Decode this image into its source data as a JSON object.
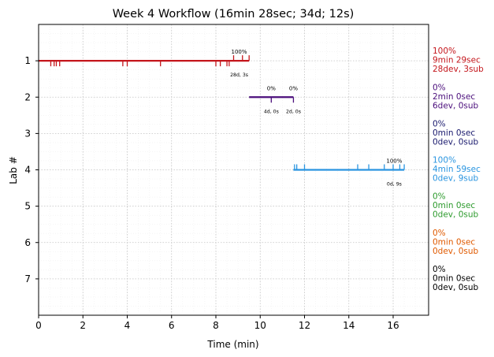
{
  "chart_data": {
    "type": "timeline",
    "title": "Week 4 Workflow (16min 28sec; 34d; 12s)",
    "xlabel": "Time (min)",
    "ylabel": "Lab #",
    "xlim": [
      0,
      17.6
    ],
    "ylim": [
      8,
      0
    ],
    "x_ticks": [
      0,
      2,
      4,
      6,
      8,
      10,
      12,
      14,
      16
    ],
    "y_ticks": [
      1,
      2,
      3,
      4,
      5,
      6,
      7
    ],
    "grid": true,
    "series": [
      {
        "lab": 1,
        "color": "#c4161c",
        "segments": [
          {
            "start": 0.0,
            "end": 9.5
          }
        ],
        "dev_ticks": [
          0.55,
          0.7,
          0.8,
          0.95,
          3.8,
          4.0,
          5.5,
          8.0,
          8.2,
          8.5,
          8.6
        ],
        "sub_ticks": [
          8.8,
          9.2,
          9.5
        ],
        "marks": [
          {
            "x": 9.05,
            "top": "100%",
            "bottom": "28d, 3s"
          }
        ],
        "summary": [
          "100%",
          "9min 29sec",
          "28dev, 3sub"
        ]
      },
      {
        "lab": 2,
        "color": "#4b0f7c",
        "segments": [
          {
            "start": 9.5,
            "end": 11.5
          }
        ],
        "dev_ticks": [
          10.5,
          11.5
        ],
        "sub_ticks": [],
        "marks": [
          {
            "x": 10.5,
            "top": "0%",
            "bottom": "4d, 0s"
          },
          {
            "x": 11.5,
            "top": "0%",
            "bottom": "2d, 0s"
          }
        ],
        "summary": [
          "0%",
          "2min 0sec",
          "6dev, 0sub"
        ]
      },
      {
        "lab": 3,
        "color": "#1a1a6e",
        "segments": [],
        "dev_ticks": [],
        "sub_ticks": [],
        "marks": [],
        "summary": [
          "0%",
          "0min 0sec",
          "0dev, 0sub"
        ]
      },
      {
        "lab": 4,
        "color": "#2a95e0",
        "segments": [
          {
            "start": 11.5,
            "end": 16.5
          }
        ],
        "dev_ticks": [],
        "sub_ticks": [
          11.55,
          11.65,
          12.0,
          14.4,
          14.9,
          15.6,
          16.0,
          16.3,
          16.5
        ],
        "marks": [
          {
            "x": 16.05,
            "top": "100%",
            "bottom": "0d, 9s"
          }
        ],
        "summary": [
          "100%",
          "4min 59sec",
          "0dev, 9sub"
        ]
      },
      {
        "lab": 5,
        "color": "#2e9b2e",
        "segments": [],
        "dev_ticks": [],
        "sub_ticks": [],
        "marks": [],
        "summary": [
          "0%",
          "0min 0sec",
          "0dev, 0sub"
        ]
      },
      {
        "lab": 6,
        "color": "#e05a00",
        "segments": [],
        "dev_ticks": [],
        "sub_ticks": [],
        "marks": [],
        "summary": [
          "0%",
          "0min 0sec",
          "0dev, 0sub"
        ]
      },
      {
        "lab": 7,
        "color": "#000000",
        "segments": [],
        "dev_ticks": [],
        "sub_ticks": [],
        "marks": [],
        "summary": [
          "0%",
          "0min 0sec",
          "0dev, 0sub"
        ]
      }
    ]
  }
}
